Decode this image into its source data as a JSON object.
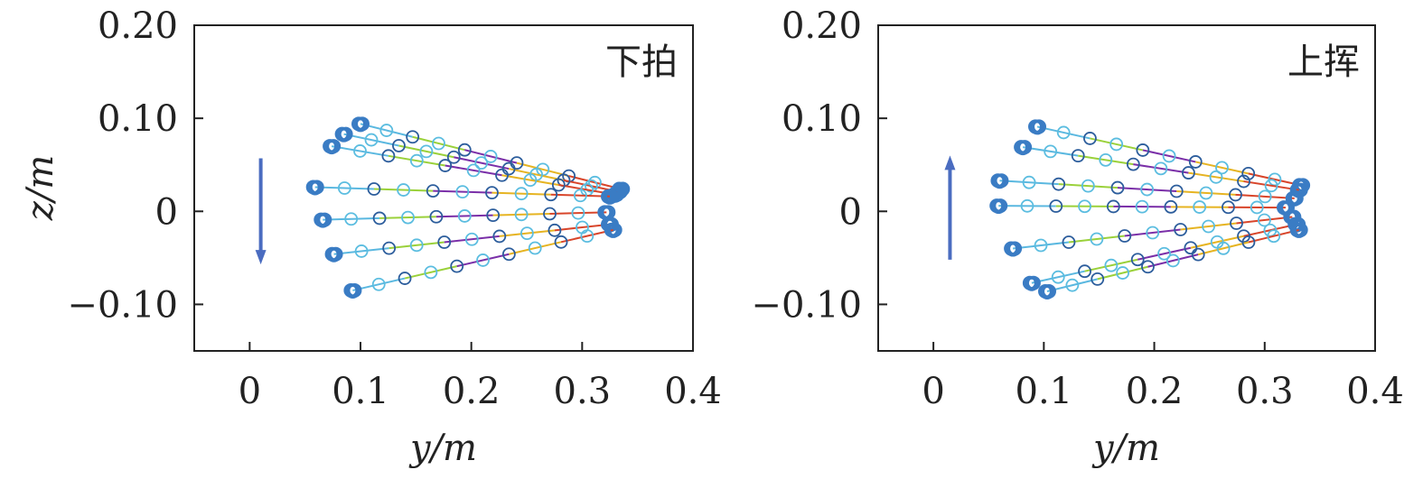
{
  "chart_data": [
    {
      "type": "scatter",
      "title": "下拍",
      "xlabel": "y/m",
      "ylabel": "z/m",
      "xlim": [
        -0.05,
        0.4
      ],
      "ylim": [
        -0.15,
        0.2
      ],
      "xticks": [
        0,
        0.1,
        0.2,
        0.3,
        0.4
      ],
      "xtick_labels": [
        "0",
        "0.1",
        "0.2",
        "0.3",
        "0.4"
      ],
      "yticks": [
        0.2,
        0.1,
        0,
        -0.1
      ],
      "ytick_labels": [
        "0.20",
        "0.10",
        "0",
        "−0.10"
      ],
      "arrow": {
        "direction": "down",
        "y": 0.01,
        "z_from": 0.057,
        "z_to": -0.057
      },
      "series": [
        {
          "name": "line-1",
          "tip": [
            0.1,
            0.094
          ],
          "root": [
            0.335,
            0.024
          ]
        },
        {
          "name": "line-2",
          "tip": [
            0.085,
            0.083
          ],
          "root": [
            0.333,
            0.021
          ]
        },
        {
          "name": "line-3",
          "tip": [
            0.074,
            0.07
          ],
          "root": [
            0.33,
            0.018
          ]
        },
        {
          "name": "line-4",
          "tip": [
            0.059,
            0.026
          ],
          "root": [
            0.325,
            0.016
          ]
        },
        {
          "name": "line-5",
          "tip": [
            0.066,
            -0.009
          ],
          "root": [
            0.322,
            -0.001
          ]
        },
        {
          "name": "line-6",
          "tip": [
            0.076,
            -0.046
          ],
          "root": [
            0.325,
            -0.014
          ]
        },
        {
          "name": "line-7",
          "tip": [
            0.093,
            -0.085
          ],
          "root": [
            0.328,
            -0.02
          ]
        }
      ]
    },
    {
      "type": "scatter",
      "title": "上挥",
      "xlabel": "y/m",
      "ylabel": "",
      "xlim": [
        -0.05,
        0.4
      ],
      "ylim": [
        -0.15,
        0.2
      ],
      "xticks": [
        0,
        0.1,
        0.2,
        0.3,
        0.4
      ],
      "xtick_labels": [
        "0",
        "0.1",
        "0.2",
        "0.3",
        "0.4"
      ],
      "yticks": [
        0.2,
        0.1,
        0,
        -0.1
      ],
      "ytick_labels": [
        "0.20",
        "0.10",
        "0",
        "−0.10"
      ],
      "arrow": {
        "direction": "up",
        "y": 0.015,
        "z_from": -0.052,
        "z_to": 0.06
      },
      "series": [
        {
          "name": "line-1",
          "tip": [
            0.094,
            0.091
          ],
          "root": [
            0.333,
            0.028
          ]
        },
        {
          "name": "line-2",
          "tip": [
            0.081,
            0.069
          ],
          "root": [
            0.331,
            0.023
          ]
        },
        {
          "name": "line-3",
          "tip": [
            0.06,
            0.033
          ],
          "root": [
            0.327,
            0.014
          ]
        },
        {
          "name": "line-4",
          "tip": [
            0.059,
            0.006
          ],
          "root": [
            0.319,
            0.004
          ]
        },
        {
          "name": "line-5",
          "tip": [
            0.072,
            -0.04
          ],
          "root": [
            0.325,
            -0.006
          ]
        },
        {
          "name": "line-6",
          "tip": [
            0.089,
            -0.077
          ],
          "root": [
            0.329,
            -0.014
          ]
        },
        {
          "name": "line-7",
          "tip": [
            0.103,
            -0.086
          ],
          "root": [
            0.331,
            -0.02
          ]
        }
      ]
    }
  ],
  "colors": {
    "marker_light": "#5bbde0",
    "marker_dark": "#2c5d9c",
    "cluster": "#3a7cc4",
    "arrow": "#4a6cc0",
    "segments": [
      "#5ab8e0",
      "#9ad13a",
      "#7a2fa8",
      "#e6b422",
      "#d8452a"
    ]
  }
}
